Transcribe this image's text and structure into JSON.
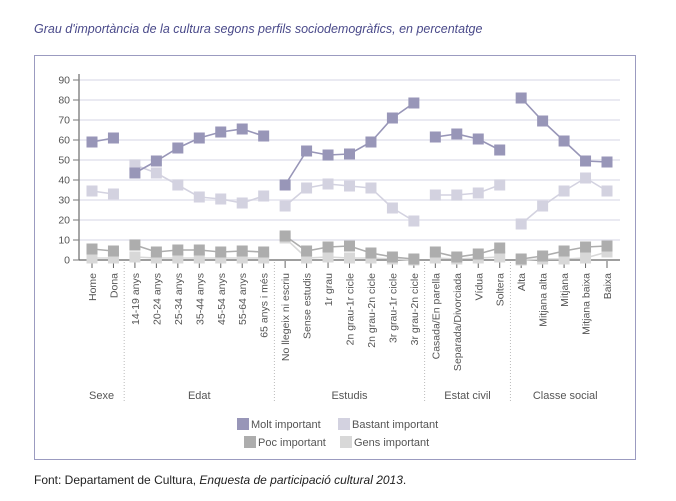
{
  "title": "Grau d'importància de la cultura segons perfils sociodemogràfics, en percentatge",
  "source": {
    "prefix": "Font: Departament de Cultura, ",
    "italic": "Enquesta de participació cultural 2013",
    "suffix": "."
  },
  "chart_data": {
    "type": "line",
    "title": "Grau d'importància de la cultura segons perfils sociodemogràfics, en percentatge",
    "xlabel": "",
    "ylabel": "",
    "ylim": [
      0,
      90
    ],
    "yticks": [
      0,
      10,
      20,
      30,
      40,
      50,
      60,
      70,
      80,
      90
    ],
    "grid": true,
    "legend_position": "bottom-center",
    "groups": [
      {
        "name": "Sexe",
        "categories": [
          "Home",
          "Dona"
        ]
      },
      {
        "name": "Edat",
        "categories": [
          "14-19 anys",
          "20-24 anys",
          "25-34 anys",
          "35-44 anys",
          "45-54 anys",
          "55-64 anys",
          "65 anys i més"
        ]
      },
      {
        "name": "Estudis",
        "categories": [
          "No llegeix ni escriu",
          "Sense estudis",
          "1r grau",
          "2n grau-1r cicle",
          "2n grau-2n cicle",
          "3r grau-1r cicle",
          "3r grau-2n cicle"
        ]
      },
      {
        "name": "Estat civil",
        "categories": [
          "Casada/En parella",
          "Separada/Divorciada",
          "Vídua",
          "Soltera"
        ]
      },
      {
        "name": "Classe social",
        "categories": [
          "Alta",
          "Mitjana alta",
          "Mitjana",
          "Mitjana baixa",
          "Baixa"
        ]
      }
    ],
    "series": [
      {
        "name": "Molt important",
        "color": "#9896b8",
        "values": [
          59,
          61,
          43.5,
          49.5,
          56,
          61,
          64,
          65.5,
          62,
          37.5,
          54.5,
          52.5,
          53,
          59,
          71,
          78.5,
          61.5,
          63,
          60.5,
          55,
          81,
          69.5,
          59.5,
          49.5,
          49
        ]
      },
      {
        "name": "Bastant important",
        "color": "#d3d2e0",
        "values": [
          34.5,
          33,
          47.5,
          43.5,
          37.5,
          31.5,
          30.5,
          28.5,
          32,
          27,
          36,
          38,
          37,
          36,
          26,
          19.5,
          32.5,
          32.5,
          33.5,
          37.5,
          18,
          27,
          34.5,
          41,
          34.5
        ]
      },
      {
        "name": "Poc important",
        "color": "#adadad",
        "values": [
          5.5,
          4.5,
          7.5,
          4,
          5,
          5,
          4,
          4.5,
          4,
          12,
          4.5,
          6.5,
          7,
          3.5,
          1.5,
          0.5,
          4,
          1.5,
          3,
          6,
          0.5,
          2,
          4.5,
          6.5,
          7
        ]
      },
      {
        "name": "Gens important",
        "color": "#d8d8d8",
        "values": [
          1,
          1,
          1.5,
          1,
          1,
          1,
          1,
          1,
          1,
          11,
          1,
          1.5,
          1,
          1,
          0.5,
          0,
          1,
          0.5,
          1,
          1.5,
          0,
          0.5,
          0.5,
          1,
          4
        ]
      }
    ]
  }
}
